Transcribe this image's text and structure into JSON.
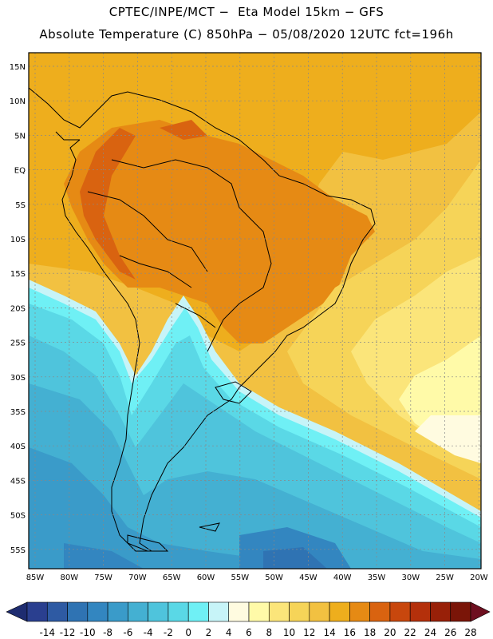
{
  "header": {
    "line1": "CPTEC/INPE/MCT −  Eta Model 15km − GFS",
    "line2": "Absolute Temperature (C) 850hPa − 05/08/2020 12UTC fct=196h"
  },
  "map": {
    "lat_labels": [
      "15N",
      "10N",
      "5N",
      "EQ",
      "5S",
      "10S",
      "15S",
      "20S",
      "25S",
      "30S",
      "35S",
      "40S",
      "45S",
      "50S",
      "55S"
    ],
    "lon_labels": [
      "85W",
      "80W",
      "75W",
      "70W",
      "65W",
      "60W",
      "55W",
      "50W",
      "45W",
      "40W",
      "35W",
      "30W",
      "25W",
      "20W"
    ],
    "grid": "dashed",
    "region": "South America"
  },
  "colorbar": {
    "labels": [
      "-14",
      "-12",
      "-10",
      "-8",
      "-6",
      "-4",
      "-2",
      "0",
      "2",
      "4",
      "6",
      "8",
      "10",
      "12",
      "14",
      "16",
      "18",
      "20",
      "22",
      "24",
      "26",
      "28"
    ],
    "colors": [
      "#2a3f8f",
      "#2e5aa3",
      "#2f73b3",
      "#3386c0",
      "#3a9bc9",
      "#44b0d2",
      "#4fc4dc",
      "#5ad8e6",
      "#6ff0f5",
      "#c7f4f8",
      "#fffbe0",
      "#fffaa8",
      "#fbe57a",
      "#f6d458",
      "#f2c141",
      "#eeae1d",
      "#e68a14",
      "#d96310",
      "#c8470d",
      "#b4300b",
      "#982008",
      "#7a1508"
    ],
    "under_color": "#1e2c70",
    "over_color": "#6e0f20"
  }
}
